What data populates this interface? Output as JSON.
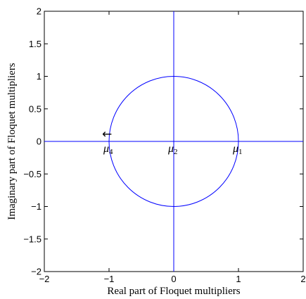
{
  "chart_data": {
    "type": "line",
    "title": "",
    "xlabel": "Real part of Floquet multipliers",
    "ylabel": "Imaginary part of Floquet multipliers",
    "xlim": [
      -2,
      2
    ],
    "ylim": [
      -2,
      2
    ],
    "xticks": [
      -2,
      -1,
      0,
      1,
      2
    ],
    "yticks": [
      -2,
      -1.5,
      -1,
      -0.5,
      0,
      0.5,
      1,
      1.5,
      2
    ],
    "xtick_labels": [
      "−2",
      "−1",
      "0",
      "1",
      "2"
    ],
    "ytick_labels": [
      "−2",
      "−1.5",
      "−1",
      "−0.5",
      "0",
      "0.5",
      "1",
      "1.5",
      "2"
    ],
    "grid": false,
    "line_color": "#0000ff",
    "series": [
      {
        "kind": "unit-circle",
        "center": [
          0,
          0
        ],
        "radius": 1
      },
      {
        "kind": "horizontal-line",
        "y": 0,
        "x_range": [
          -2,
          2
        ]
      },
      {
        "kind": "vertical-line",
        "x": 0,
        "y_range": [
          -2,
          2
        ]
      }
    ],
    "annotations": [
      {
        "x": 1,
        "y": 0,
        "label": "μ",
        "subscript": "1"
      },
      {
        "x": 0,
        "y": 0,
        "label": "μ",
        "subscript": "2"
      },
      {
        "x": -1,
        "y": 0,
        "label": "μ",
        "subscript": "4"
      }
    ],
    "arrow": {
      "x": -1,
      "y": 0,
      "glyph": "←"
    }
  }
}
